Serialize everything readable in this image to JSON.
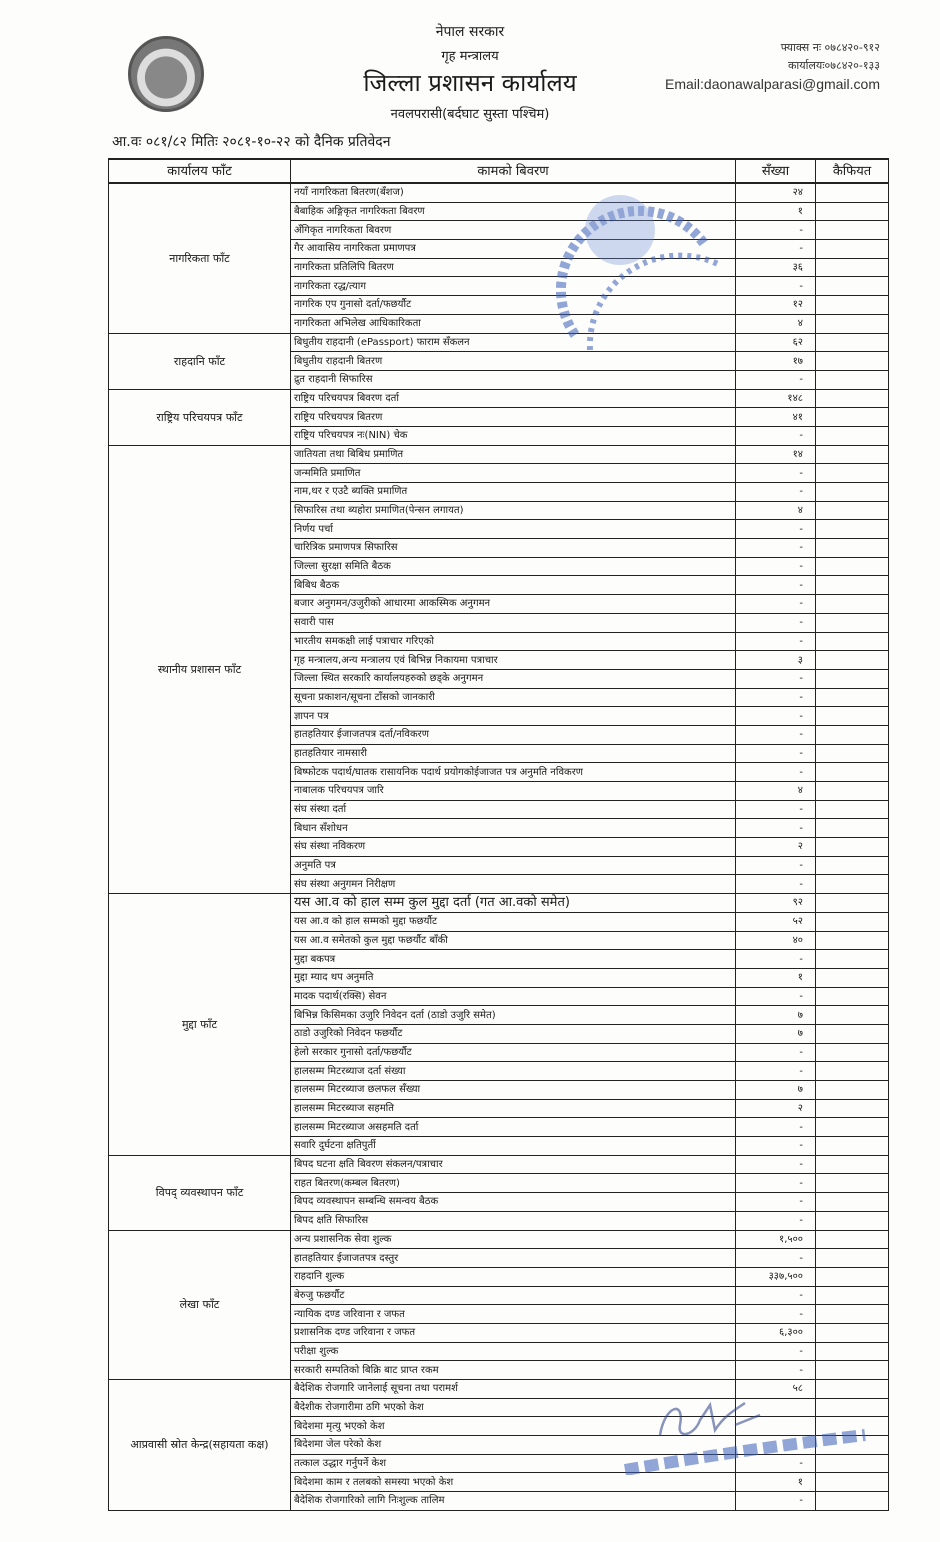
{
  "header": {
    "government": "नेपाल सरकार",
    "ministry": "गृह मन्त्रालय",
    "office": "जिल्ला प्रशासन कार्यालय",
    "location": "नवलपरासी(बर्दघाट सुस्ता पश्चिम)",
    "fax": "फ्याक्स नः ०७८४२०-९१२",
    "office_phone": "कार्यालयः०७८४२०-१३३",
    "email": "Email:daonawalparasi@gmail.com"
  },
  "report_title": "आ.वः ०८१/८२ मितिः २०८१-१०-२२ को दैनिक प्रतिवेदन",
  "columns": [
    "कार्यालय फाँट",
    "कामको बिवरण",
    "सँख्या",
    "कैफियत"
  ],
  "sections": [
    {
      "name": "नागरिकता फाँट",
      "rows": [
        [
          "नयाँ नागरिकता बितरण(बँशज)",
          "२४"
        ],
        [
          "बैबाहिक अङ्गिकृत नागरिकता बिवरण",
          "१"
        ],
        [
          "अँगिकृत नागरिकता बिवरण",
          "-"
        ],
        [
          "गैर आवासिय नागरिकता प्रमाणपत्र",
          "-"
        ],
        [
          "नागरिकता प्रतिलिपि बितरण",
          "३६"
        ],
        [
          "नागरिकता रद्ध/त्याग",
          "-"
        ],
        [
          "नागरिक एप गुनासो दर्ता/फछर्यौट",
          "१२"
        ],
        [
          "नागरिकता अभिलेख आधिकारिकता",
          "४"
        ]
      ]
    },
    {
      "name": "राहदानि फाँट",
      "rows": [
        [
          "बिधुतीय राहदानी (ePassport) फाराम सँकलन",
          "६२"
        ],
        [
          "बिधुतीय राहदानी बितरण",
          "१७"
        ],
        [
          "द्रुत राहदानी सिफारिस",
          "-"
        ]
      ]
    },
    {
      "name": "राष्ट्रिय परिचयपत्र फाँट",
      "rows": [
        [
          "राष्ट्रिय परिचयपत्र बिवरण दर्ता",
          "१४८"
        ],
        [
          "राष्ट्रिय परिचयपत्र बितरण",
          "४१"
        ],
        [
          "राष्ट्रिय परिचयपत्र नः(NIN) चेक",
          "-"
        ]
      ]
    },
    {
      "name": "स्थानीय प्रशासन फाँट",
      "rows": [
        [
          "जातियता तथा बिबिध प्रमाणित",
          "१४"
        ],
        [
          "जन्ममिति प्रमाणित",
          "-"
        ],
        [
          "नाम,थर र एउटै ब्यक्ति प्रमाणित",
          "-"
        ],
        [
          "सिफारिस तथा ब्यहोरा प्रमाणित(पेन्सन लगायत)",
          "४"
        ],
        [
          "निर्णय पर्चा",
          "-"
        ],
        [
          "चारित्रिक प्रमाणपत्र सिफारिस",
          "-"
        ],
        [
          "जिल्ला सुरक्षा समिति बैठक",
          "-"
        ],
        [
          "बिबिध बैठक",
          "-"
        ],
        [
          "बजार अनुगमन/उजुरीको आधारमा आकस्मिक अनुगमन",
          "-"
        ],
        [
          "सवारी पास",
          "-"
        ],
        [
          "भारतीय समकक्षी लाई पत्राचार गरिएको",
          "-"
        ],
        [
          "गृह मन्त्रालय,अन्य मन्त्रालय एवं बिभिन्न निकायमा पत्राचार",
          "३"
        ],
        [
          "जिल्ला स्थित सरकारि कार्यालयहरुको छड्के अनुगमन",
          "-"
        ],
        [
          "सूचना प्रकाशन/सूचना टाँसको जानकारी",
          "-"
        ],
        [
          "ज्ञापन पत्र",
          "-"
        ],
        [
          "हातहतियार ईजाजतपत्र दर्ता/नविकरण",
          "-"
        ],
        [
          "हातहतियार नामसारी",
          "-"
        ],
        [
          "बिष्फोटक पदार्थ/घातक रासायनिक पदार्थ प्रयोगकोईजाजत पत्र अनुमति नविकरण",
          "-"
        ],
        [
          "नाबालक परिचयपत्र जारि",
          "४"
        ],
        [
          "संघ संस्था दर्ता",
          "-"
        ],
        [
          "बिधान सँशोधन",
          "-"
        ],
        [
          "संघ संस्था नविकरण",
          "२"
        ],
        [
          "अनुमति पत्र",
          "-"
        ],
        [
          "संघ संस्था अनुगमन निरीक्षण",
          "-"
        ]
      ]
    },
    {
      "name": "मुद्दा फाँट",
      "rows": [
        [
          "यस आ.व को हाल सम्म कुल मुद्दा दर्ता (गत आ.वको समेत)",
          "९२"
        ],
        [
          "यस आ.व को हाल सम्मको मुद्दा फछर्यौट",
          "५२"
        ],
        [
          "यस आ.व समेतको कुल मुद्दा फछर्यौट बाँकी",
          "४०"
        ],
        [
          "मुद्दा बकपत्र",
          "-"
        ],
        [
          "मुद्दा म्याद थप अनुमति",
          "१"
        ],
        [
          "मादक पदार्थ(रक्सि) सेवन",
          "-"
        ],
        [
          "बिभिन्न किसिमका उजुरि निवेदन दर्ता (ठाडो उजुरि समेत)",
          "७"
        ],
        [
          "ठाडो उजुरिको निवेदन फछर्यौट",
          "७"
        ],
        [
          "हेलो सरकार गुनासो दर्ता/फछर्यौट",
          "-"
        ],
        [
          "हालसम्म मिटरब्याज दर्ता संख्या",
          "-"
        ],
        [
          "हालसम्म मिटरब्याज छलफल सँख्या",
          "७"
        ],
        [
          "हालसम्म मिटरब्याज सहमति",
          "२"
        ],
        [
          "हालसम्म मिटरब्याज असहमति दर्ता",
          "-"
        ],
        [
          "सवारि दुर्घटना क्षतिपुर्ती",
          "-"
        ]
      ]
    },
    {
      "name": "विपद् व्यवस्थापन फाँट",
      "rows": [
        [
          "बिपद घटना क्षति बिवरण संकलन/पत्राचार",
          "-"
        ],
        [
          "राहत बितरण(कम्बल बितरण)",
          "-"
        ],
        [
          "बिपद व्यवस्थापन सम्बन्धि समन्वय बैठक",
          "-"
        ],
        [
          "बिपद क्षति सिफारिस",
          "-"
        ]
      ]
    },
    {
      "name": "लेखा फाँट",
      "rows": [
        [
          "अन्य प्रशासनिक सेवा शुल्क",
          "१,५००"
        ],
        [
          "हातहतियार ईजाजतपत्र दस्तुर",
          "-"
        ],
        [
          "राहदानि शुल्क",
          "३३७,५००"
        ],
        [
          "बेरुजु फछर्यौट",
          "-"
        ],
        [
          "न्यायिक दण्ड जरिवाना र जफत",
          "-"
        ],
        [
          "प्रशासनिक दण्ड जरिवाना र जफत",
          "६,३००"
        ],
        [
          "परीक्षा शुल्क",
          "-"
        ],
        [
          "सरकारी सम्पतिको बिक्रि बाट प्राप्त रकम",
          "-"
        ]
      ]
    },
    {
      "name": "आप्रवासी स्रोत केन्द्र(सहायता कक्ष)",
      "rows": [
        [
          "बैदेशिक रोजगारि जानेलाई सूचना तथा परामर्श",
          "५८"
        ],
        [
          "बैदेशीक रोजगारीमा ठगि भएको केश",
          ""
        ],
        [
          "बिदेशमा मृत्यु भएको केश",
          ""
        ],
        [
          "बिदेशमा जेल परेको केश",
          ""
        ],
        [
          "तत्काल उद्धार गर्नुपर्ने केश",
          "-"
        ],
        [
          "बिदेशमा काम र तलबको समस्या भएको केश",
          "१"
        ],
        [
          "बैदेशिक रोजगारिको लागि निःशुल्क तालिम",
          "-"
        ]
      ]
    }
  ],
  "stamps": {
    "office_seal": "नेपाल सरकार गृह मन्त्रालय जिल्ला प्रशासन कार्यालय",
    "officer_stamp": "प्रशासकीय अधिकृत"
  },
  "stamp_color": "#3a5fb8"
}
